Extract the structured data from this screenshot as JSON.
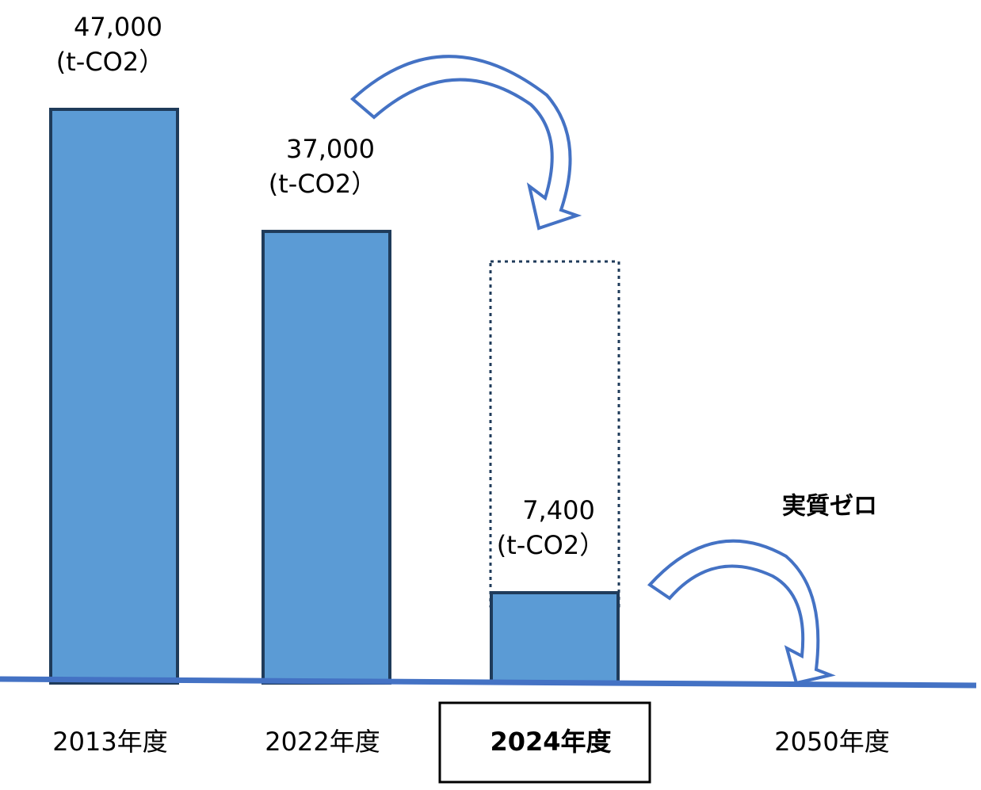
{
  "chart_data": {
    "type": "bar",
    "categories": [
      "2013年度",
      "2022年度",
      "2024年度",
      "2050年度"
    ],
    "values": [
      47000,
      37000,
      7400,
      null
    ],
    "value_labels": [
      "47,000",
      "37,000",
      "7,400",
      null
    ],
    "unit": "(t-CO2）",
    "annotation": "実質ゼロ",
    "highlight": "2024年度",
    "color": "#5b9bd5",
    "ylim": [
      0,
      47000
    ]
  }
}
